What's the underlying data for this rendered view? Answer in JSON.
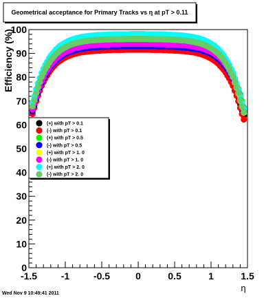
{
  "chart_data": {
    "type": "scatter",
    "title": "Geometrical acceptance for Primary Tracks vs    η at pT > 0.11",
    "ylabel": "Efficiency (%)",
    "xlabel": "η",
    "xlim": [
      -1.5,
      1.5
    ],
    "ylim": [
      0,
      100
    ],
    "x_ticks": [
      -1.5,
      -1,
      -0.5,
      0,
      0.5,
      1,
      1.5
    ],
    "x_tick_labels": [
      "-1.5",
      "-1",
      "-0.5",
      "0",
      "0.5",
      "1",
      "1.5"
    ],
    "y_ticks": [
      0,
      10,
      20,
      30,
      40,
      50,
      60,
      70,
      80,
      90,
      100
    ],
    "y_tick_labels": [
      "0",
      "10",
      "20",
      "30",
      "40",
      "50",
      "60",
      "70",
      "80",
      "90",
      "100"
    ],
    "grid": false,
    "legend_position": "middle-left",
    "x": [
      -1.45,
      -1.425,
      -1.4,
      -1.375,
      -1.35,
      -1.325,
      -1.3,
      -1.275,
      -1.25,
      -1.225,
      -1.2,
      -1.175,
      -1.15,
      -1.125,
      -1.1,
      -1.075,
      -1.05,
      -1.025,
      -1.0,
      -0.975,
      -0.95,
      -0.925,
      -0.9,
      -0.875,
      -0.85,
      -0.825,
      -0.8,
      -0.775,
      -0.75,
      -0.725,
      -0.7,
      -0.675,
      -0.65,
      -0.625,
      -0.6,
      -0.575,
      -0.55,
      -0.525,
      -0.5,
      -0.475,
      -0.45,
      -0.425,
      -0.4,
      -0.375,
      -0.35,
      -0.325,
      -0.3,
      -0.275,
      -0.25,
      -0.225,
      -0.2,
      -0.175,
      -0.15,
      -0.125,
      -0.1,
      -0.075,
      -0.05,
      -0.025,
      0.0,
      0.025,
      0.05,
      0.075,
      0.1,
      0.125,
      0.15,
      0.175,
      0.2,
      0.225,
      0.25,
      0.275,
      0.3,
      0.325,
      0.35,
      0.375,
      0.4,
      0.425,
      0.45,
      0.475,
      0.5,
      0.525,
      0.55,
      0.575,
      0.6,
      0.625,
      0.65,
      0.675,
      0.7,
      0.725,
      0.75,
      0.775,
      0.8,
      0.825,
      0.85,
      0.875,
      0.9,
      0.925,
      0.95,
      0.975,
      1.0,
      1.025,
      1.05,
      1.075,
      1.1,
      1.125,
      1.15,
      1.175,
      1.2,
      1.225,
      1.25,
      1.275,
      1.3,
      1.325,
      1.35,
      1.375,
      1.4,
      1.425,
      1.45
    ],
    "series": [
      {
        "name": "(+) with pT > 0.1",
        "color": "#000000",
        "values": [
          66.2,
          68.8,
          71.6,
          74.0,
          76.1,
          78.2,
          79.8,
          81.3,
          82.6,
          83.9,
          85.1,
          86.0,
          86.8,
          87.7,
          88.3,
          89.0,
          89.5,
          90.0,
          90.4,
          90.8,
          91.1,
          91.4,
          91.7,
          91.9,
          92.1,
          92.3,
          92.5,
          92.6,
          92.7,
          92.9,
          93.0,
          93.1,
          93.1,
          93.2,
          93.3,
          93.3,
          93.4,
          93.4,
          93.5,
          93.5,
          93.5,
          93.6,
          93.6,
          93.6,
          93.7,
          93.7,
          93.7,
          93.7,
          93.7,
          93.7,
          93.7,
          93.8,
          93.8,
          93.8,
          93.8,
          93.8,
          93.8,
          93.8,
          93.8,
          93.8,
          93.8,
          93.8,
          93.8,
          93.8,
          93.8,
          93.7,
          93.7,
          93.7,
          93.7,
          93.7,
          93.7,
          93.7,
          93.6,
          93.6,
          93.6,
          93.5,
          93.5,
          93.5,
          93.4,
          93.4,
          93.3,
          93.3,
          93.2,
          93.1,
          93.1,
          93.0,
          92.9,
          92.7,
          92.6,
          92.5,
          92.3,
          92.1,
          91.9,
          91.7,
          91.4,
          91.1,
          90.8,
          90.4,
          90.0,
          89.5,
          89.0,
          88.3,
          87.7,
          86.8,
          86.0,
          85.1,
          83.9,
          82.6,
          81.3,
          79.8,
          78.2,
          76.1,
          74.0,
          71.6,
          68.8,
          66.2,
          63.8
        ]
      },
      {
        "name": "(-) with pT > 0.1",
        "color": "#ff0000",
        "values": [
          64.6,
          67.2,
          69.9,
          72.3,
          74.4,
          76.4,
          78.0,
          79.5,
          80.7,
          82.0,
          83.1,
          84.0,
          84.8,
          85.7,
          86.3,
          86.9,
          87.4,
          87.9,
          88.3,
          88.7,
          89.0,
          89.3,
          89.6,
          89.8,
          90.0,
          90.2,
          90.4,
          90.5,
          90.6,
          90.7,
          90.8,
          90.9,
          91.0,
          91.0,
          91.1,
          91.1,
          91.2,
          91.2,
          91.3,
          91.3,
          91.3,
          91.4,
          91.4,
          91.4,
          91.5,
          91.5,
          91.5,
          91.5,
          91.5,
          91.5,
          91.5,
          91.6,
          91.6,
          91.6,
          91.6,
          91.6,
          91.6,
          91.6,
          91.6,
          91.6,
          91.6,
          91.6,
          91.6,
          91.6,
          91.6,
          91.5,
          91.5,
          91.5,
          91.5,
          91.5,
          91.5,
          91.5,
          91.4,
          91.4,
          91.4,
          91.3,
          91.3,
          91.3,
          91.2,
          91.2,
          91.1,
          91.1,
          91.0,
          91.0,
          90.9,
          90.8,
          90.7,
          90.6,
          90.5,
          90.4,
          90.2,
          90.0,
          89.8,
          89.6,
          89.3,
          89.0,
          88.7,
          88.3,
          87.9,
          87.4,
          86.9,
          86.3,
          85.7,
          84.8,
          84.0,
          83.1,
          82.0,
          80.7,
          79.5,
          78.0,
          76.4,
          74.4,
          72.3,
          69.9,
          67.2,
          64.6,
          62.3
        ]
      },
      {
        "name": "(+) with pT > 0.5",
        "color": "#00ff00",
        "values": [
          67.3,
          69.9,
          72.8,
          75.2,
          77.3,
          79.5,
          81.1,
          82.7,
          84.0,
          85.3,
          86.5,
          87.4,
          88.3,
          89.2,
          89.8,
          90.5,
          91.0,
          91.5,
          91.9,
          92.3,
          92.6,
          92.9,
          93.2,
          93.5,
          93.7,
          93.9,
          94.0,
          94.2,
          94.3,
          94.4,
          94.5,
          94.6,
          94.7,
          94.8,
          94.8,
          94.9,
          94.9,
          95.0,
          95.0,
          95.1,
          95.1,
          95.1,
          95.2,
          95.2,
          95.2,
          95.2,
          95.3,
          95.3,
          95.3,
          95.3,
          95.3,
          95.3,
          95.3,
          95.3,
          95.3,
          95.4,
          95.4,
          95.4,
          95.4,
          95.4,
          95.4,
          95.4,
          95.3,
          95.3,
          95.3,
          95.3,
          95.3,
          95.3,
          95.3,
          95.3,
          95.3,
          95.2,
          95.2,
          95.2,
          95.2,
          95.1,
          95.1,
          95.1,
          95.0,
          95.0,
          94.9,
          94.9,
          94.8,
          94.8,
          94.7,
          94.6,
          94.5,
          94.4,
          94.3,
          94.2,
          94.0,
          93.9,
          93.7,
          93.5,
          93.2,
          92.9,
          92.6,
          92.3,
          91.9,
          91.5,
          91.0,
          90.5,
          89.8,
          89.2,
          88.3,
          87.4,
          86.5,
          85.3,
          84.0,
          82.7,
          81.1,
          79.5,
          77.3,
          75.2,
          72.8,
          69.9,
          67.3
        ]
      },
      {
        "name": "(-) with pT > 0.5",
        "color": "#0000ff",
        "values": [
          65.7,
          68.3,
          71.1,
          73.5,
          75.6,
          77.7,
          79.3,
          80.8,
          82.1,
          83.4,
          84.5,
          85.4,
          86.3,
          87.1,
          87.7,
          88.4,
          88.9,
          89.4,
          89.8,
          90.2,
          90.5,
          90.8,
          91.0,
          91.3,
          91.5,
          91.7,
          91.9,
          92.0,
          92.1,
          92.2,
          92.3,
          92.4,
          92.5,
          92.6,
          92.6,
          92.7,
          92.7,
          92.8,
          92.8,
          92.8,
          92.9,
          92.9,
          92.9,
          93.0,
          93.0,
          93.0,
          93.0,
          93.0,
          93.1,
          93.1,
          93.1,
          93.1,
          93.1,
          93.1,
          93.1,
          93.1,
          93.1,
          93.1,
          93.1,
          93.1,
          93.1,
          93.1,
          93.1,
          93.1,
          93.1,
          93.1,
          93.1,
          93.1,
          93.1,
          93.0,
          93.0,
          93.0,
          93.0,
          93.0,
          92.9,
          92.9,
          92.9,
          92.8,
          92.8,
          92.8,
          92.7,
          92.7,
          92.6,
          92.6,
          92.5,
          92.4,
          92.3,
          92.2,
          92.1,
          92.0,
          91.9,
          91.7,
          91.5,
          91.3,
          91.0,
          90.8,
          90.5,
          90.2,
          89.8,
          89.4,
          88.9,
          88.4,
          87.7,
          87.1,
          86.3,
          85.4,
          84.5,
          83.4,
          82.1,
          80.8,
          79.3,
          77.7,
          75.6,
          73.5,
          71.1,
          68.3,
          65.7
        ]
      },
      {
        "name": "(+) with pT > 1. 0",
        "color": "#ffff00",
        "values": [
          67.7,
          70.3,
          73.2,
          75.6,
          77.8,
          80.0,
          81.6,
          83.2,
          84.5,
          85.8,
          87.0,
          87.9,
          88.8,
          89.7,
          90.3,
          91.0,
          91.5,
          92.0,
          92.4,
          92.8,
          93.2,
          93.5,
          93.8,
          94.0,
          94.2,
          94.4,
          94.6,
          94.7,
          94.8,
          95.0,
          95.1,
          95.2,
          95.2,
          95.3,
          95.4,
          95.4,
          95.5,
          95.5,
          95.6,
          95.6,
          95.6,
          95.7,
          95.7,
          95.7,
          95.8,
          95.8,
          95.8,
          95.8,
          95.8,
          95.8,
          95.8,
          95.9,
          95.9,
          95.9,
          95.9,
          95.9,
          95.9,
          95.9,
          95.9,
          95.9,
          95.9,
          95.9,
          95.9,
          95.9,
          95.9,
          95.8,
          95.8,
          95.8,
          95.8,
          95.8,
          95.8,
          95.8,
          95.7,
          95.7,
          95.7,
          95.6,
          95.6,
          95.6,
          95.5,
          95.5,
          95.4,
          95.4,
          95.3,
          95.2,
          95.2,
          95.1,
          95.0,
          94.8,
          94.7,
          94.6,
          94.4,
          94.2,
          94.0,
          93.8,
          93.5,
          93.2,
          92.8,
          92.4,
          92.0,
          91.5,
          91.0,
          90.3,
          89.7,
          88.8,
          87.9,
          87.0,
          85.8,
          84.5,
          83.2,
          81.6,
          80.0,
          77.8,
          75.6,
          73.2,
          70.3,
          67.7,
          65.2
        ]
      },
      {
        "name": "(-) with pT > 1. 0",
        "color": "#ff00ff",
        "values": [
          66.4,
          69.0,
          71.8,
          74.2,
          76.3,
          78.4,
          80.0,
          81.6,
          82.9,
          84.2,
          85.3,
          86.2,
          87.1,
          88.0,
          88.6,
          89.2,
          89.7,
          90.2,
          90.6,
          91.0,
          91.3,
          91.6,
          91.9,
          92.2,
          92.4,
          92.6,
          92.7,
          92.9,
          93.0,
          93.1,
          93.2,
          93.3,
          93.4,
          93.5,
          93.5,
          93.6,
          93.6,
          93.7,
          93.7,
          93.7,
          93.8,
          93.8,
          93.8,
          93.9,
          93.9,
          93.9,
          93.9,
          93.9,
          94.0,
          94.0,
          94.0,
          94.0,
          94.0,
          94.0,
          94.0,
          94.0,
          94.0,
          94.0,
          94.0,
          94.0,
          94.0,
          94.0,
          94.0,
          94.0,
          94.0,
          94.0,
          94.0,
          94.0,
          94.0,
          93.9,
          93.9,
          93.9,
          93.9,
          93.9,
          93.8,
          93.8,
          93.8,
          93.7,
          93.7,
          93.7,
          93.6,
          93.6,
          93.5,
          93.5,
          93.4,
          93.3,
          93.2,
          93.1,
          93.0,
          92.9,
          92.7,
          92.6,
          92.4,
          92.2,
          91.9,
          91.6,
          91.3,
          91.0,
          90.6,
          90.2,
          89.7,
          89.2,
          88.6,
          88.0,
          87.1,
          86.2,
          85.3,
          84.2,
          82.9,
          81.6,
          80.0,
          78.4,
          76.3,
          74.2,
          71.8,
          69.0,
          66.4
        ]
      },
      {
        "name": "(+) with pT > 2. 0",
        "color": "#00ffff",
        "values": [
          69.2,
          71.9,
          74.9,
          77.4,
          79.6,
          81.8,
          83.5,
          85.1,
          86.4,
          87.8,
          89.0,
          89.9,
          90.8,
          91.7,
          92.4,
          93.1,
          93.6,
          94.1,
          94.5,
          94.9,
          95.3,
          95.6,
          95.9,
          96.1,
          96.4,
          96.5,
          96.7,
          96.9,
          97.0,
          97.1,
          97.2,
          97.3,
          97.4,
          97.5,
          97.5,
          97.6,
          97.7,
          97.7,
          97.7,
          97.8,
          97.8,
          97.8,
          97.9,
          97.9,
          97.9,
          98.0,
          98.0,
          98.0,
          98.0,
          98.0,
          98.0,
          98.0,
          98.0,
          98.0,
          98.1,
          98.1,
          98.1,
          98.1,
          98.1,
          98.1,
          98.1,
          98.1,
          98.0,
          98.0,
          98.0,
          98.0,
          98.0,
          98.0,
          98.0,
          98.0,
          98.0,
          97.9,
          97.9,
          97.9,
          97.8,
          97.8,
          97.8,
          97.7,
          97.7,
          97.7,
          97.6,
          97.5,
          97.5,
          97.4,
          97.3,
          97.2,
          97.1,
          97.0,
          96.9,
          96.7,
          96.5,
          96.4,
          96.1,
          95.9,
          95.6,
          95.3,
          94.9,
          94.5,
          94.1,
          93.6,
          93.1,
          92.4,
          91.7,
          90.8,
          89.9,
          89.0,
          87.8,
          86.4,
          85.1,
          83.5,
          81.8,
          79.6,
          77.4,
          74.9,
          71.9,
          69.2,
          66.8
        ]
      },
      {
        "name": "(-) with pT > 2. 0",
        "color": "#66cc66",
        "values": [
          67.8,
          70.5,
          73.4,
          75.8,
          78.0,
          80.2,
          81.8,
          83.4,
          84.7,
          86.0,
          87.2,
          88.1,
          89.0,
          89.9,
          90.5,
          91.2,
          91.7,
          92.2,
          92.6,
          93.0,
          93.4,
          93.7,
          94.0,
          94.2,
          94.4,
          94.6,
          94.8,
          94.9,
          95.1,
          95.2,
          95.3,
          95.4,
          95.5,
          95.5,
          95.6,
          95.7,
          95.7,
          95.7,
          95.8,
          95.8,
          95.9,
          95.9,
          95.9,
          95.9,
          96.0,
          96.0,
          96.0,
          96.0,
          96.0,
          96.0,
          96.0,
          96.1,
          96.1,
          96.1,
          96.1,
          96.1,
          96.1,
          96.1,
          96.1,
          96.1,
          96.1,
          96.1,
          96.1,
          96.1,
          96.1,
          96.0,
          96.0,
          96.0,
          96.0,
          96.0,
          96.0,
          96.0,
          95.9,
          95.9,
          95.9,
          95.9,
          95.8,
          95.8,
          95.7,
          95.7,
          95.7,
          95.6,
          95.5,
          95.5,
          95.4,
          95.3,
          95.2,
          95.1,
          94.9,
          94.8,
          94.6,
          94.4,
          94.2,
          94.0,
          93.7,
          93.4,
          93.0,
          92.6,
          92.2,
          91.7,
          91.2,
          90.5,
          89.9,
          89.0,
          88.1,
          87.2,
          86.0,
          84.7,
          83.4,
          81.8,
          80.2,
          78.0,
          75.8,
          73.4,
          70.5,
          67.8,
          65.4
        ]
      }
    ]
  },
  "footer": {
    "timestamp": "Wed Nov  9 10:49:41 2011"
  }
}
